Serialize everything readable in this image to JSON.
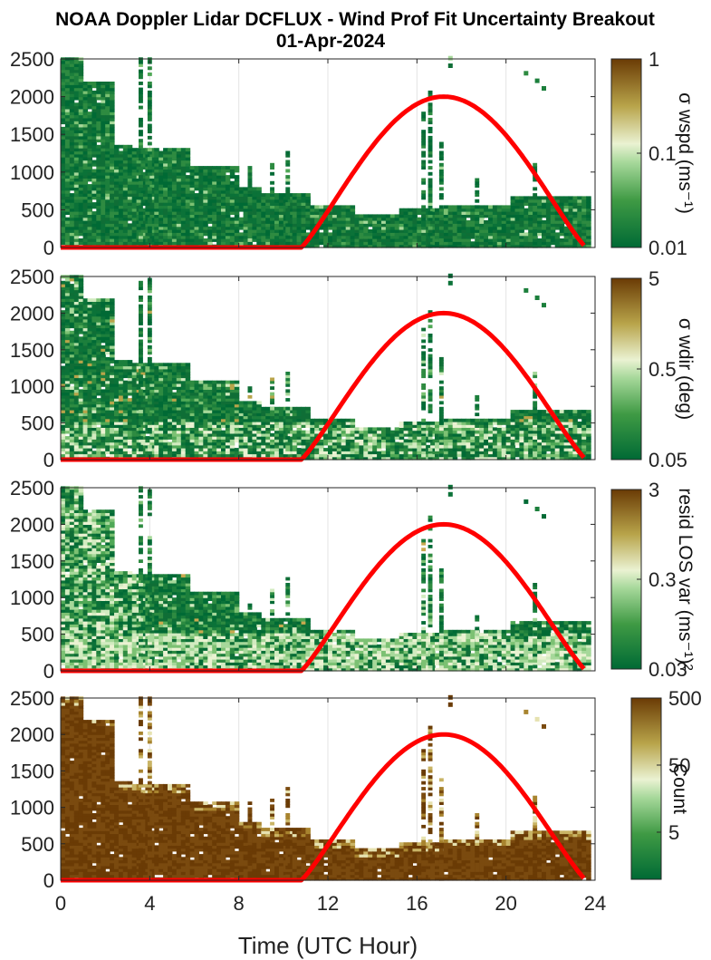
{
  "title_line1": "NOAA Doppler Lidar DCFLUX - Wind Prof Fit Uncertainty Breakout",
  "title_line2": "01-Apr-2024",
  "colors": {
    "low": "#006a35",
    "mid": "#eaf2d2",
    "high": "#6a3b05",
    "daylight_curve": "#ff0000"
  },
  "chart_data": [
    {
      "type": "heatmap",
      "title": "",
      "xlabel": "",
      "ylabel": "",
      "xlim": [
        0,
        24
      ],
      "ylim": [
        0,
        2500
      ],
      "yticks": [
        "0",
        "500",
        "1000",
        "1500",
        "2000",
        "2500"
      ],
      "colorbar": {
        "label": "σ wspd (ms⁻¹)",
        "scale": "log",
        "range": [
          0.01,
          1
        ],
        "ticks": [
          "1",
          "0.1",
          "0.01"
        ]
      },
      "daylight_curve": {
        "start_hour": 10.8,
        "peak_hour": 17.2,
        "end_hour": 23.6,
        "peak_value": 2000
      }
    },
    {
      "type": "heatmap",
      "title": "",
      "xlabel": "",
      "ylabel": "",
      "xlim": [
        0,
        24
      ],
      "ylim": [
        0,
        2500
      ],
      "yticks": [
        "0",
        "500",
        "1000",
        "1500",
        "2000",
        "2500"
      ],
      "colorbar": {
        "label": "σ wdir (deg)",
        "scale": "log",
        "range": [
          0.05,
          5
        ],
        "ticks": [
          "5",
          "0.5",
          "0.05"
        ]
      },
      "daylight_curve": {
        "start_hour": 10.8,
        "peak_hour": 17.2,
        "end_hour": 23.6,
        "peak_value": 2000
      }
    },
    {
      "type": "heatmap",
      "title": "",
      "xlabel": "",
      "ylabel": "",
      "xlim": [
        0,
        24
      ],
      "ylim": [
        0,
        2500
      ],
      "yticks": [
        "0",
        "500",
        "1000",
        "1500",
        "2000",
        "2500"
      ],
      "colorbar": {
        "label": "resid LOS var (ms⁻¹)²",
        "scale": "log",
        "range": [
          0.03,
          3
        ],
        "ticks": [
          "3",
          "0.3",
          "0.03"
        ]
      },
      "daylight_curve": {
        "start_hour": 10.8,
        "peak_hour": 17.2,
        "end_hour": 23.6,
        "peak_value": 2000
      }
    },
    {
      "type": "heatmap",
      "title": "",
      "xlabel": "Time (UTC Hour)",
      "ylabel": "",
      "xlim": [
        0,
        24
      ],
      "ylim": [
        0,
        2500
      ],
      "xticks": [
        "0",
        "4",
        "8",
        "12",
        "16",
        "20",
        "24"
      ],
      "yticks": [
        "0",
        "500",
        "1000",
        "1500",
        "2000",
        "2500"
      ],
      "colorbar": {
        "label": "Count",
        "scale": "log",
        "range": [
          1,
          500
        ],
        "ticks": [
          "500",
          "50",
          "5"
        ]
      },
      "daylight_curve": {
        "start_hour": 10.8,
        "peak_hour": 17.2,
        "end_hour": 23.6,
        "peak_value": 2000
      }
    }
  ]
}
